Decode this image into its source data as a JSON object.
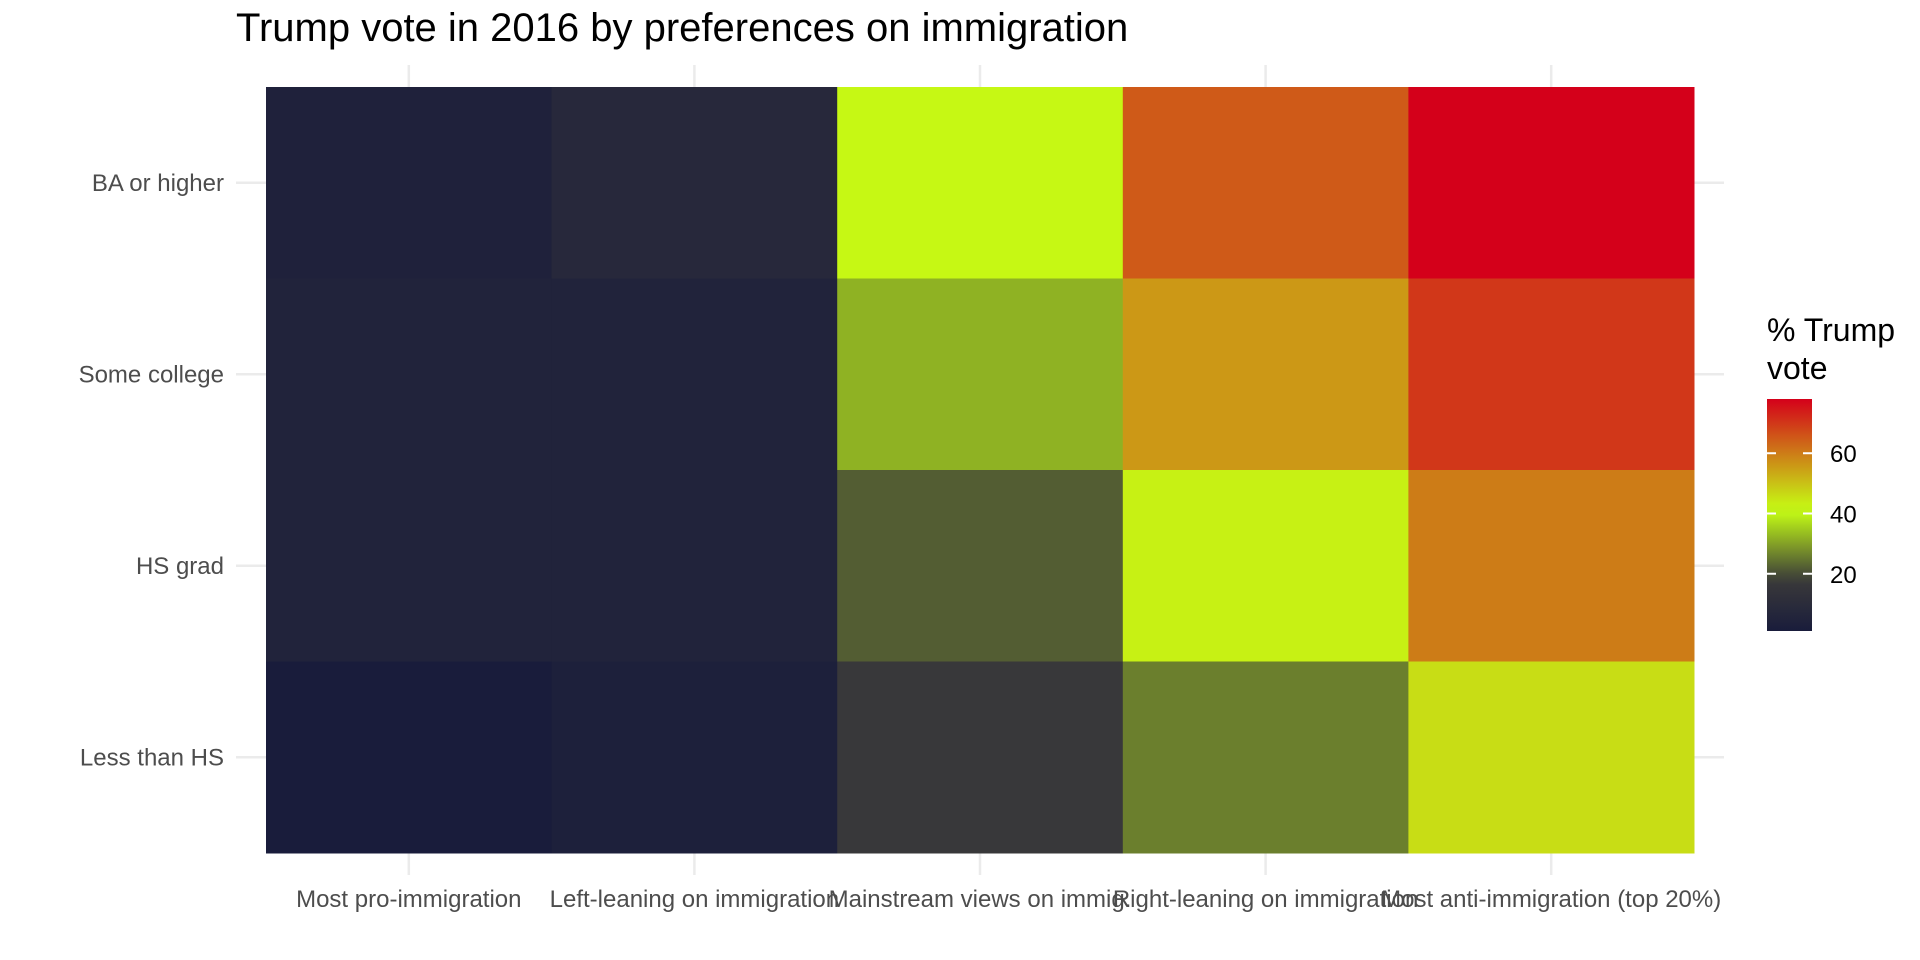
{
  "chart_data": {
    "type": "heatmap",
    "title": "Trump vote in 2016 by preferences on immigration",
    "xlabel": "",
    "ylabel": "",
    "x_categories": [
      "Most pro-immigration",
      "Left-leaning on immigration",
      "Mainstream views on immig.",
      "Right-leaning on immigration",
      "Most anti-immigration (top 20%)"
    ],
    "y_categories": [
      "BA or higher",
      "Some college",
      "HS grad",
      "Less than HS"
    ],
    "values": [
      [
        4,
        8,
        42,
        65,
        78
      ],
      [
        5,
        5,
        32,
        56,
        70
      ],
      [
        5,
        5,
        22,
        43,
        60
      ],
      [
        1,
        3,
        17,
        26,
        46
      ]
    ],
    "legend": {
      "title": "% Trump vote",
      "title_lines": [
        "% Trump",
        "vote"
      ],
      "ticks": [
        20,
        40,
        60
      ],
      "range": [
        1,
        78
      ],
      "placement": "right"
    },
    "colors": {
      "low": "#191c3b",
      "mid_dark": "#3a3a3a",
      "mid": "#c6ff14",
      "high": "#d4001a"
    },
    "grid": true
  }
}
